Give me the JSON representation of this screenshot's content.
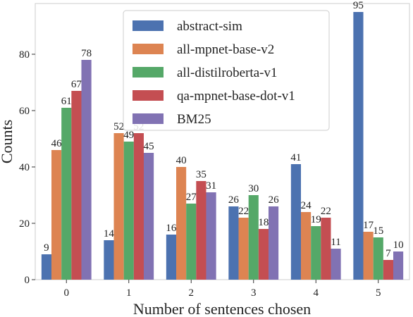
{
  "chart_data": {
    "type": "bar",
    "title": "",
    "xlabel": "Number of sentences chosen",
    "ylabel": "Counts",
    "categories": [
      "0",
      "1",
      "2",
      "3",
      "4",
      "5"
    ],
    "ylim": [
      0,
      98
    ],
    "yticks": [
      0,
      20,
      40,
      60,
      80
    ],
    "grid": "none",
    "legend_position": "top-center",
    "series": [
      {
        "name": "abstract-sim",
        "color": "#4c72b0",
        "values": [
          9,
          14,
          16,
          26,
          41,
          95
        ]
      },
      {
        "name": "all-mpnet-base-v2",
        "color": "#dd8452",
        "values": [
          46,
          52,
          40,
          22,
          24,
          17
        ]
      },
      {
        "name": "all-distilroberta-v1",
        "color": "#55a868",
        "values": [
          61,
          49,
          27,
          30,
          19,
          15
        ]
      },
      {
        "name": "qa-mpnet-base-dot-v1",
        "color": "#c44e52",
        "values": [
          67,
          52,
          35,
          18,
          22,
          7
        ]
      },
      {
        "name": "BM25",
        "color": "#8172b3",
        "values": [
          78,
          45,
          31,
          26,
          11,
          10
        ]
      }
    ]
  }
}
